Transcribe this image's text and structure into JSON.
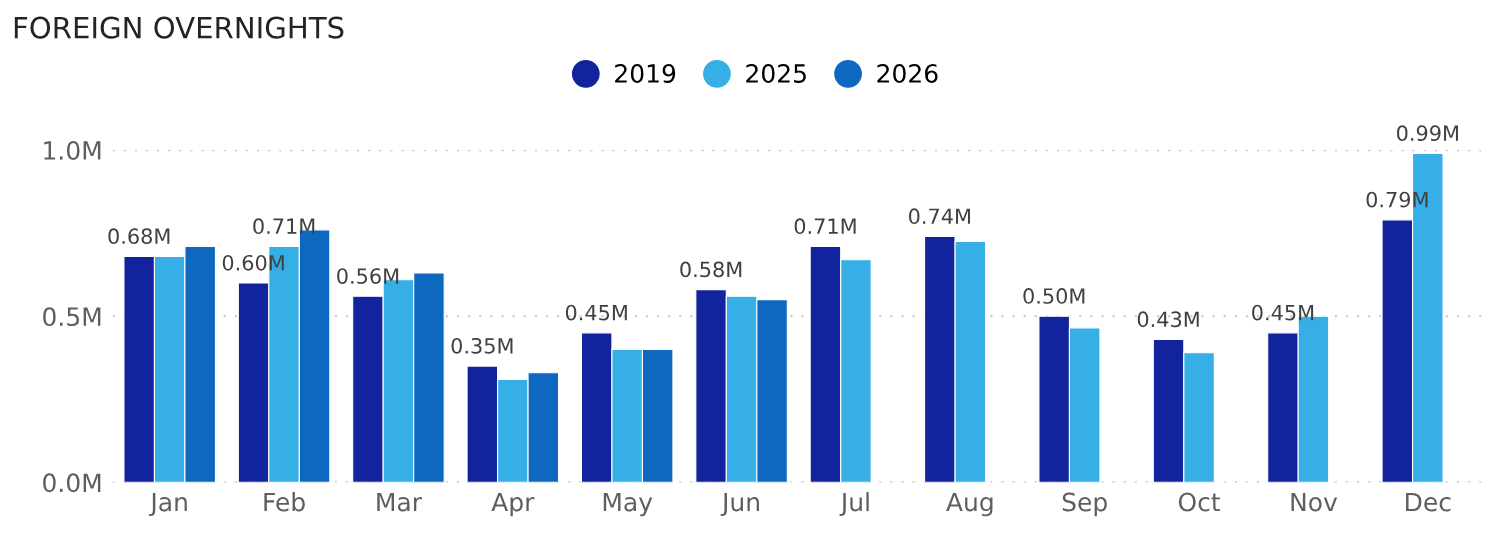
{
  "chart_data": {
    "type": "bar",
    "title": "FOREIGN OVERNIGHTS",
    "categories": [
      "Jan",
      "Feb",
      "Mar",
      "Apr",
      "May",
      "Jun",
      "Jul",
      "Aug",
      "Sep",
      "Oct",
      "Nov",
      "Dec"
    ],
    "series": [
      {
        "name": "2019",
        "color": "#12239e",
        "values": [
          0.68,
          0.6,
          0.56,
          0.35,
          0.45,
          0.58,
          0.71,
          0.74,
          0.5,
          0.43,
          0.45,
          0.79
        ],
        "value_labels": [
          "0.68M",
          "0.60M",
          "0.56M",
          "0.35M",
          "0.45M",
          "0.58M",
          "0.71M",
          "0.74M",
          "0.50M",
          "0.43M",
          "0.45M",
          "0.79M"
        ]
      },
      {
        "name": "2025",
        "color": "#36aee6",
        "values": [
          0.68,
          0.71,
          0.61,
          0.31,
          0.4,
          0.56,
          0.67,
          0.725,
          0.465,
          0.39,
          0.5,
          0.99
        ],
        "value_labels": [
          null,
          "0.71M",
          null,
          null,
          null,
          null,
          null,
          null,
          null,
          null,
          null,
          "0.99M"
        ]
      },
      {
        "name": "2026",
        "color": "#0e68c0",
        "values": [
          0.71,
          0.76,
          0.63,
          0.33,
          0.4,
          0.55,
          null,
          null,
          null,
          null,
          null,
          null
        ]
      }
    ],
    "ylim": [
      0,
      1.0
    ],
    "yticks": [
      {
        "value": 0,
        "label": "0.0M"
      },
      {
        "value": 0.5,
        "label": "0.5M"
      },
      {
        "value": 1.0,
        "label": "1.0M"
      }
    ],
    "grid": "y",
    "legend": "top",
    "marker": "circle"
  }
}
